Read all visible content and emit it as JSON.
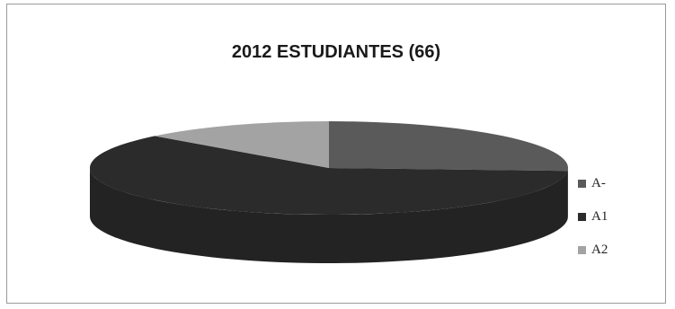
{
  "chart_data": {
    "type": "pie",
    "title": "2012 ESTUDIANTES (66)",
    "legend_position": "right",
    "categories": [
      "A-",
      "A1",
      "A2"
    ],
    "values": [
      26,
      61,
      13
    ],
    "colors": [
      "#5a5a5a",
      "#2b2b2b",
      "#a3a3a3"
    ]
  }
}
